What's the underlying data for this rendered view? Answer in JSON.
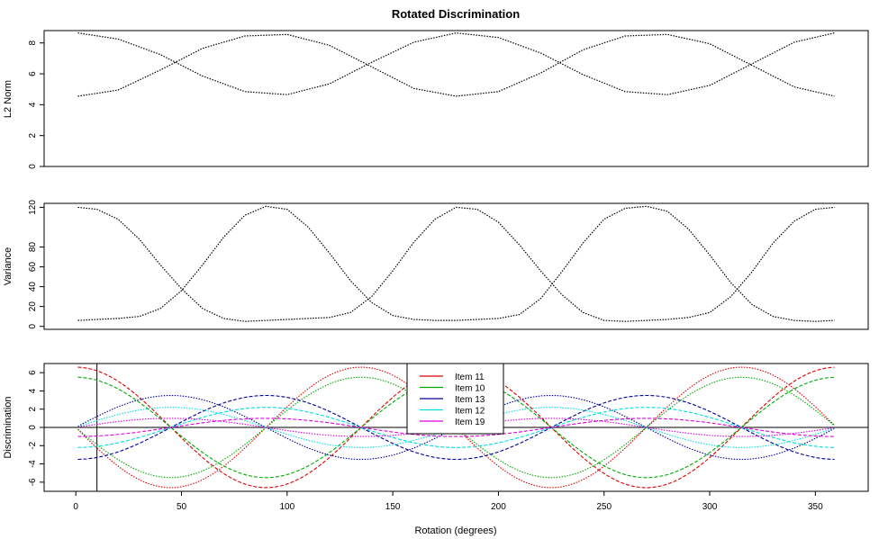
{
  "title": "Rotated Discrimination",
  "xlabel": "Rotation (degrees)",
  "x_ticks": [
    0,
    50,
    100,
    150,
    200,
    250,
    300,
    350
  ],
  "chart_data": [
    {
      "type": "line",
      "ylabel": "L2 Norm",
      "xlim": [
        -15,
        375
      ],
      "ylim": [
        0,
        8.8
      ],
      "y_ticks": [
        0,
        2,
        4,
        6,
        8
      ],
      "series": [
        {
          "color": "#000000",
          "dash": "dotted",
          "x": [
            1,
            20,
            40,
            60,
            80,
            100,
            120,
            140,
            160,
            180,
            200,
            220,
            240,
            260,
            280,
            300,
            320,
            340,
            359
          ],
          "y": [
            8.65,
            8.25,
            7.25,
            5.85,
            4.85,
            4.65,
            5.35,
            6.75,
            8.05,
            8.65,
            8.35,
            7.35,
            5.95,
            4.85,
            4.65,
            5.25,
            6.65,
            8.05,
            8.65
          ]
        },
        {
          "color": "#000000",
          "dash": "dotted",
          "x": [
            1,
            20,
            40,
            60,
            80,
            100,
            120,
            140,
            160,
            180,
            200,
            220,
            240,
            260,
            280,
            300,
            320,
            340,
            359
          ],
          "y": [
            4.55,
            4.95,
            6.25,
            7.65,
            8.45,
            8.55,
            7.85,
            6.45,
            5.05,
            4.55,
            4.85,
            6.05,
            7.55,
            8.45,
            8.55,
            7.95,
            6.55,
            5.15,
            4.55
          ]
        }
      ]
    },
    {
      "type": "line",
      "ylabel": "Variance",
      "xlim": [
        -15,
        375
      ],
      "ylim": [
        -3,
        124
      ],
      "y_ticks": [
        0,
        20,
        40,
        60,
        80,
        120
      ],
      "series": [
        {
          "color": "#000000",
          "dash": "dotted",
          "x": [
            1,
            10,
            20,
            30,
            40,
            50,
            60,
            70,
            80,
            90,
            100,
            110,
            120,
            130,
            140,
            150,
            160,
            170,
            180,
            190,
            200,
            210,
            220,
            230,
            240,
            250,
            260,
            270,
            280,
            290,
            300,
            310,
            320,
            330,
            340,
            350,
            359
          ],
          "y": [
            120,
            118,
            108,
            88,
            62,
            38,
            18,
            8,
            5,
            6,
            7,
            8,
            9,
            14,
            30,
            56,
            85,
            108,
            120,
            118,
            105,
            82,
            56,
            32,
            14,
            6,
            5,
            6,
            7,
            9,
            14,
            30,
            55,
            84,
            106,
            118,
            120
          ]
        },
        {
          "color": "#000000",
          "dash": "dotted",
          "x": [
            1,
            10,
            20,
            30,
            40,
            50,
            60,
            70,
            80,
            90,
            100,
            110,
            120,
            130,
            140,
            150,
            160,
            170,
            180,
            190,
            200,
            210,
            220,
            230,
            240,
            250,
            260,
            270,
            280,
            290,
            300,
            310,
            320,
            330,
            340,
            350,
            359
          ],
          "y": [
            6,
            7,
            8,
            10,
            18,
            36,
            62,
            90,
            112,
            121,
            118,
            100,
            74,
            46,
            24,
            11,
            7,
            6,
            6,
            7,
            8,
            12,
            28,
            55,
            84,
            108,
            119,
            121,
            116,
            98,
            72,
            44,
            22,
            10,
            6,
            5,
            6
          ]
        }
      ]
    },
    {
      "type": "line",
      "ylabel": "Discrimination",
      "xlim": [
        -15,
        375
      ],
      "ylim": [
        -7.0,
        7.0
      ],
      "y_ticks": [
        -6,
        -4,
        -2,
        0,
        2,
        4,
        6
      ],
      "hline": 0,
      "vline": 10,
      "legend_position": "top-center",
      "series": [
        {
          "name": "Item 11",
          "color": "#dd0000",
          "amplitude": 6.6,
          "phase": 0
        },
        {
          "name": "Item 10",
          "color": "#00aa00",
          "amplitude": 5.5,
          "phase": 0
        },
        {
          "name": "Item 13",
          "color": "#000099",
          "amplitude": 3.5,
          "phase": 90
        },
        {
          "name": "Item 12",
          "color": "#00dddd",
          "amplitude": 2.2,
          "phase": 90
        },
        {
          "name": "Item 19",
          "color": "#dd00dd",
          "amplitude": 1.0,
          "phase": 90
        }
      ]
    }
  ]
}
